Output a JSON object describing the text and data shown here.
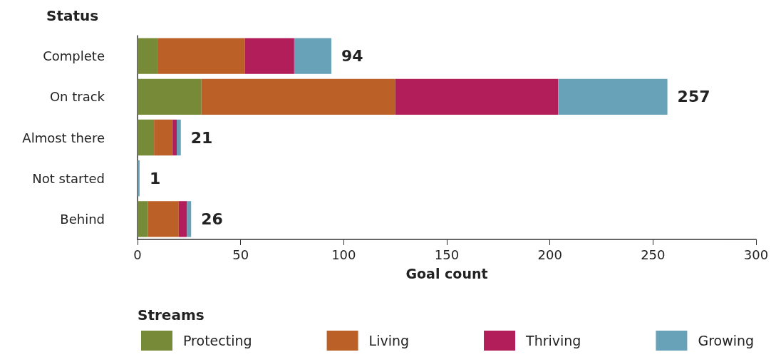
{
  "chart_data": {
    "type": "bar",
    "orientation": "horizontal",
    "stacked": true,
    "ylabel": "Status",
    "xlabel": "Goal count",
    "legend_title": "Streams",
    "legend": "bottom",
    "grid": false,
    "categories": [
      "Complete",
      "On track",
      "Almost there",
      "Not started",
      "Behind"
    ],
    "series": [
      {
        "name": "Protecting",
        "color": "#778a37",
        "values": [
          10,
          31,
          8,
          0,
          5
        ]
      },
      {
        "name": "Living",
        "color": "#bb6128",
        "values": [
          42,
          94,
          9,
          0,
          15
        ]
      },
      {
        "name": "Thriving",
        "color": "#b21e5a",
        "values": [
          24,
          79,
          2,
          0,
          4
        ]
      },
      {
        "name": "Growing",
        "color": "#67a2b9",
        "values": [
          18,
          53,
          2,
          1,
          2
        ]
      }
    ],
    "totals": [
      "94",
      "257",
      "21",
      "1",
      "26"
    ],
    "xlim": [
      0,
      300
    ],
    "xticks": [
      0,
      50,
      100,
      150,
      200,
      250,
      300
    ]
  }
}
